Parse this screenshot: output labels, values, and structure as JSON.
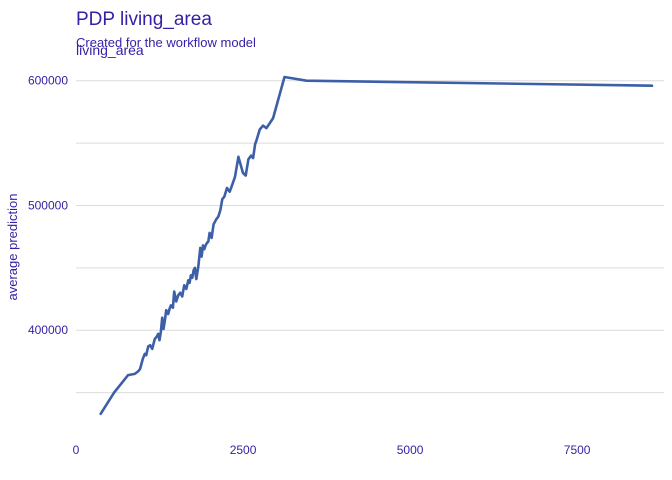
{
  "chart_data": {
    "type": "line",
    "title": "PDP living_area",
    "subtitle": "Created for the workflow model",
    "panel_label": "living_area",
    "xlabel": "",
    "ylabel": "average prediction",
    "xlim": [
      0,
      8800
    ],
    "ylim": [
      320000,
      615000
    ],
    "x_ticks": [
      0,
      2500,
      5000,
      7500
    ],
    "y_ticks": [
      400000,
      500000,
      600000
    ],
    "y_grid": [
      350000,
      400000,
      450000,
      500000,
      550000,
      600000
    ],
    "grid": true,
    "colors": {
      "line": "#3c5fa8",
      "text": "#371ea3",
      "grid": "#dcdcdc"
    },
    "series": [
      {
        "x": [
          370,
          570,
          780,
          880,
          930,
          960,
          1000,
          1030,
          1050,
          1080,
          1110,
          1140,
          1180,
          1210,
          1230,
          1250,
          1270,
          1290,
          1310,
          1330,
          1350,
          1380,
          1400,
          1420,
          1450,
          1470,
          1500,
          1530,
          1560,
          1590,
          1620,
          1650,
          1680,
          1700,
          1720,
          1740,
          1760,
          1780,
          1800,
          1830,
          1860,
          1880,
          1900,
          1920,
          1940,
          1960,
          1980,
          2000,
          2030,
          2060,
          2080,
          2100,
          2130,
          2160,
          2190,
          2220,
          2260,
          2300,
          2340,
          2380,
          2430,
          2500,
          2540,
          2580,
          2620,
          2650,
          2680,
          2700,
          2750,
          2800,
          2850,
          2900,
          2950,
          3120,
          3450,
          8620
        ],
        "y": [
          333000,
          350000,
          364000,
          365000,
          367000,
          369000,
          377000,
          381000,
          380000,
          387000,
          388000,
          385000,
          393000,
          395000,
          397000,
          392000,
          399000,
          410000,
          401000,
          408000,
          416000,
          413000,
          417000,
          420000,
          418000,
          431000,
          423000,
          428000,
          430000,
          427000,
          436000,
          433000,
          440000,
          438000,
          444000,
          442000,
          448000,
          450000,
          441000,
          451000,
          466000,
          459000,
          468000,
          465000,
          468000,
          470000,
          471000,
          478000,
          474000,
          485000,
          487000,
          489000,
          491000,
          496000,
          505000,
          507000,
          514000,
          511000,
          517000,
          523000,
          539000,
          526000,
          524000,
          537000,
          540000,
          538000,
          549000,
          552000,
          561000,
          564000,
          562000,
          566000,
          570000,
          603000,
          600000,
          596000
        ]
      }
    ]
  }
}
